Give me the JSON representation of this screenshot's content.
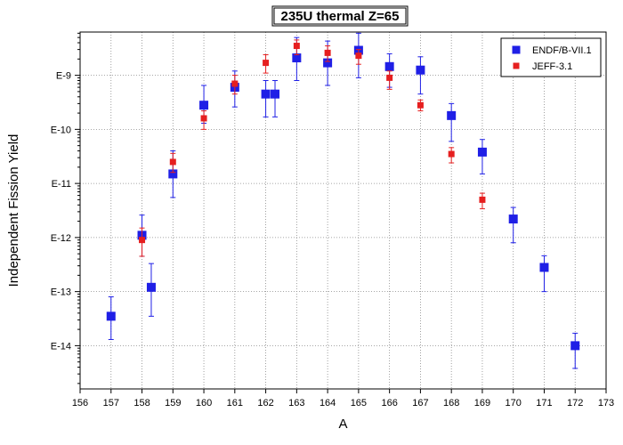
{
  "chart_data": {
    "type": "scatter",
    "title": "235U thermal Z=65",
    "xlabel": "A",
    "ylabel": "Independent Fission Yield",
    "xlim": [
      156,
      173
    ],
    "ylim_log10": [
      -14.8,
      -8.2
    ],
    "y_scale": "log",
    "grid": true,
    "legend_position": "top-right",
    "x_ticks": [
      "156",
      "157",
      "158",
      "159",
      "160",
      "161",
      "162",
      "163",
      "164",
      "165",
      "166",
      "167",
      "168",
      "169",
      "170",
      "171",
      "172",
      "173"
    ],
    "y_ticks": [
      {
        "label": "E-9",
        "value": -9
      },
      {
        "label": "E-10",
        "value": -10
      },
      {
        "label": "E-11",
        "value": -11
      },
      {
        "label": "E-12",
        "value": -12
      },
      {
        "label": "E-13",
        "value": -13
      },
      {
        "label": "E-14",
        "value": -14
      }
    ],
    "series": [
      {
        "name": "ENDF/B-VII.1",
        "color": "#1f1fe6",
        "marker": "square-large",
        "points": [
          {
            "x": 157,
            "y": 3.5e-14,
            "lo": 1.3e-14,
            "hi": 8e-14
          },
          {
            "x": 158,
            "y": 1.1e-12,
            "lo": 4.5e-13,
            "hi": 2.6e-12
          },
          {
            "x": 158.3,
            "y": 1.2e-13,
            "lo": 3.5e-14,
            "hi": 3.3e-13
          },
          {
            "x": 159,
            "y": 1.5e-11,
            "lo": 5.5e-12,
            "hi": 4e-11
          },
          {
            "x": 160,
            "y": 2.8e-10,
            "lo": 1.3e-10,
            "hi": 6.5e-10
          },
          {
            "x": 161,
            "y": 6e-10,
            "lo": 2.6e-10,
            "hi": 1.2e-09
          },
          {
            "x": 162,
            "y": 4.5e-10,
            "lo": 1.7e-10,
            "hi": 8e-10
          },
          {
            "x": 162.3,
            "y": 4.5e-10,
            "lo": 1.7e-10,
            "hi": 8e-10
          },
          {
            "x": 163,
            "y": 2.1e-09,
            "lo": 8e-10,
            "hi": 5e-09
          },
          {
            "x": 164,
            "y": 1.7e-09,
            "lo": 6.5e-10,
            "hi": 4.3e-09
          },
          {
            "x": 165,
            "y": 2.9e-09,
            "lo": 9e-10,
            "hi": 6e-09
          },
          {
            "x": 166,
            "y": 1.45e-09,
            "lo": 6e-10,
            "hi": 2.5e-09
          },
          {
            "x": 167,
            "y": 1.25e-09,
            "lo": 4.5e-10,
            "hi": 2.2e-09
          },
          {
            "x": 168,
            "y": 1.8e-10,
            "lo": 6e-11,
            "hi": 3e-10
          },
          {
            "x": 169,
            "y": 3.8e-11,
            "lo": 1.5e-11,
            "hi": 6.5e-11
          },
          {
            "x": 170,
            "y": 2.2e-12,
            "lo": 8e-13,
            "hi": 3.6e-12
          },
          {
            "x": 171,
            "y": 2.8e-13,
            "lo": 1e-13,
            "hi": 4.6e-13
          },
          {
            "x": 172,
            "y": 1e-14,
            "lo": 3.8e-15,
            "hi": 1.7e-14
          }
        ]
      },
      {
        "name": "JEFF-3.1",
        "color": "#e61f1f",
        "marker": "square-small",
        "points": [
          {
            "x": 158,
            "y": 9e-13,
            "lo": 4.5e-13,
            "hi": 1.5e-12
          },
          {
            "x": 159,
            "y": 2.5e-11,
            "lo": 1.6e-11,
            "hi": 3.6e-11
          },
          {
            "x": 160,
            "y": 1.6e-10,
            "lo": 1e-10,
            "hi": 2.2e-10
          },
          {
            "x": 161,
            "y": 7e-10,
            "lo": 4.5e-10,
            "hi": 1e-09
          },
          {
            "x": 162,
            "y": 1.7e-09,
            "lo": 1.1e-09,
            "hi": 2.4e-09
          },
          {
            "x": 163,
            "y": 3.5e-09,
            "lo": 2.4e-09,
            "hi": 4.5e-09
          },
          {
            "x": 164,
            "y": 2.6e-09,
            "lo": 1.8e-09,
            "hi": 3.5e-09
          },
          {
            "x": 165,
            "y": 2.3e-09,
            "lo": 1.6e-09,
            "hi": 3e-09
          },
          {
            "x": 166,
            "y": 9e-10,
            "lo": 5.5e-10,
            "hi": 1.2e-09
          },
          {
            "x": 167,
            "y": 2.8e-10,
            "lo": 2.2e-10,
            "hi": 3.5e-10
          },
          {
            "x": 168,
            "y": 3.5e-11,
            "lo": 2.4e-11,
            "hi": 4.6e-11
          },
          {
            "x": 169,
            "y": 5e-12,
            "lo": 3.4e-12,
            "hi": 6.6e-12
          }
        ]
      }
    ]
  }
}
